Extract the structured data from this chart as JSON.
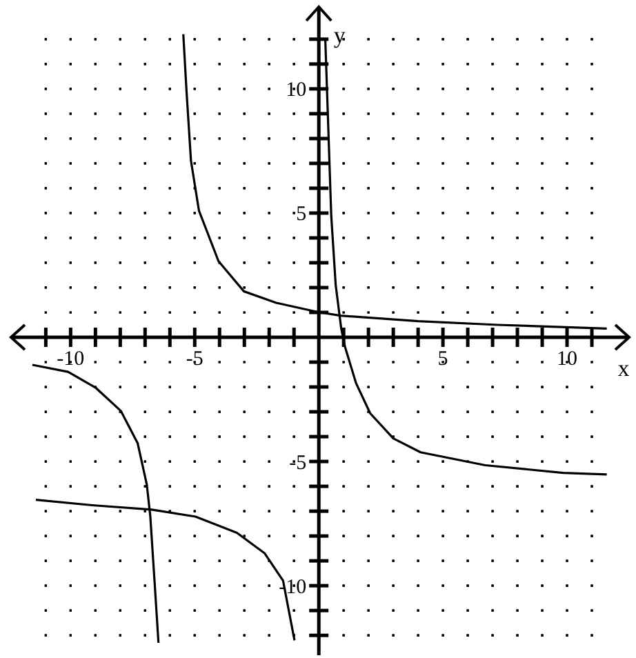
{
  "chart_data": {
    "type": "line",
    "xlabel": "x",
    "ylabel": "y",
    "xlim": [
      -12.4,
      12.5
    ],
    "ylim": [
      -12.8,
      13.3
    ],
    "xticks": [
      {
        "value": -11,
        "label": null
      },
      {
        "value": -10,
        "label": "-10"
      },
      {
        "value": -9,
        "label": null
      },
      {
        "value": -8,
        "label": null
      },
      {
        "value": -7,
        "label": null
      },
      {
        "value": -6,
        "label": null
      },
      {
        "value": -5,
        "label": "-5"
      },
      {
        "value": -4,
        "label": null
      },
      {
        "value": -3,
        "label": null
      },
      {
        "value": -2,
        "label": null
      },
      {
        "value": -1,
        "label": null
      },
      {
        "value": 1,
        "label": null
      },
      {
        "value": 2,
        "label": null
      },
      {
        "value": 3,
        "label": null
      },
      {
        "value": 4,
        "label": null
      },
      5,
      {
        "value": 6,
        "label": null
      },
      {
        "value": 7,
        "label": null
      },
      {
        "value": 8,
        "label": null
      },
      {
        "value": 9,
        "label": null
      },
      10,
      {
        "value": 11,
        "label": null
      }
    ],
    "yticks": [
      {
        "value": -12,
        "label": null
      },
      {
        "value": -11,
        "label": null
      },
      {
        "value": -10,
        "label": "-10"
      },
      {
        "value": -9,
        "label": null
      },
      {
        "value": -8,
        "label": null
      },
      {
        "value": -7,
        "label": null
      },
      {
        "value": -6,
        "label": null
      },
      {
        "value": -5,
        "label": "-5"
      },
      {
        "value": -4,
        "label": null
      },
      {
        "value": -3,
        "label": null
      },
      {
        "value": -2,
        "label": null
      },
      {
        "value": -1,
        "label": null
      },
      {
        "value": 1,
        "label": null
      },
      {
        "value": 2,
        "label": null
      },
      {
        "value": 3,
        "label": null
      },
      {
        "value": 4,
        "label": null
      },
      5,
      {
        "value": 6,
        "label": null
      },
      {
        "value": 7,
        "label": null
      },
      {
        "value": 8,
        "label": null
      },
      {
        "value": 9,
        "label": null
      },
      10,
      {
        "value": 11,
        "label": null
      },
      {
        "value": 12,
        "label": null
      }
    ],
    "grid": true,
    "marker": "none",
    "line_style": "solid",
    "series": [
      {
        "color": "#000000",
        "x": [
          -5.46,
          -5.33,
          -5.15,
          -4.83,
          -4.04,
          -3.02,
          -1.72,
          -0.06,
          0.87,
          4,
          7.2,
          11.6
        ],
        "values": [
          12.2,
          9.9,
          7.1,
          5.1,
          3.06,
          1.85,
          1.39,
          1.02,
          0.87,
          0.65,
          0.5,
          0.35
        ]
      },
      {
        "color": "#000000",
        "x": [
          0.26,
          0.35,
          0.5,
          0.68,
          0.9,
          1.05,
          1.5,
          2.07,
          3,
          4.1,
          6.7,
          9.85,
          11.6
        ],
        "values": [
          12,
          9.35,
          4.9,
          2.1,
          0.37,
          -0.37,
          -1.85,
          -3.06,
          -4.07,
          -4.63,
          -5.15,
          -5.46,
          -5.52
        ]
      },
      {
        "color": "#000000",
        "x": [
          -11.54,
          -10.1,
          -8.98,
          -7.98,
          -7.3,
          -6.93,
          -6.79,
          -6.62,
          -6.46
        ],
        "values": [
          -1.11,
          -1.39,
          -2.04,
          -2.96,
          -4.26,
          -5.93,
          -7.2,
          -9.8,
          -12.3
        ]
      },
      {
        "color": "#000000",
        "x": [
          -11.4,
          -9.13,
          -6.73,
          -4.97,
          -3.3,
          -2.18,
          -1.44,
          -0.98
        ],
        "values": [
          -6.54,
          -6.76,
          -6.94,
          -7.22,
          -7.87,
          -8.7,
          -9.8,
          -12.2
        ]
      }
    ]
  }
}
